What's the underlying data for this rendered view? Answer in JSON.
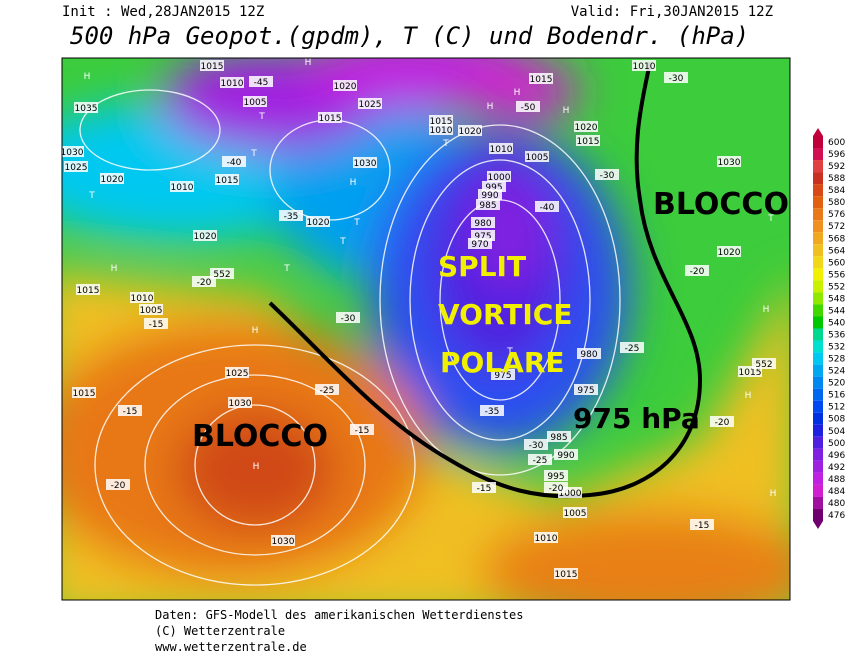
{
  "header": {
    "init": "Init : Wed,28JAN2015 12Z",
    "valid": "Valid: Fri,30JAN2015 12Z",
    "title": "500 hPa Geopot.(gpdm), T (C) und Bodendr. (hPa)"
  },
  "map": {
    "annotations": [
      "BLOCCO",
      "BLOCCO",
      "SPLIT",
      "VORTICE",
      "POLARE",
      "975 hPa"
    ],
    "labels": [
      "1015",
      "1010",
      "1005",
      "1035",
      "1030",
      "1025",
      "1020",
      "1010",
      "1015",
      "1020",
      "1020",
      "1015",
      "1010",
      "1005",
      "1025",
      "1030",
      "1015",
      "1030",
      "1020",
      "1025",
      "1015",
      "1030",
      "1015",
      "1010",
      "1020",
      "1010",
      "1005",
      "1000",
      "995",
      "990",
      "985",
      "980",
      "975",
      "970",
      "985",
      "990",
      "995",
      "1000",
      "1005",
      "1010",
      "1015",
      "1015",
      "1020",
      "1015",
      "1010",
      "1030",
      "1020",
      "1015",
      "980",
      "975",
      "975",
      "H",
      "H",
      "H",
      "H",
      "H",
      "H",
      "H",
      "H",
      "H",
      "H",
      "H",
      "H",
      "T",
      "T",
      "T",
      "T",
      "T",
      "T",
      "T",
      "T",
      "T",
      "-45",
      "-40",
      "-35",
      "-30",
      "-25",
      "-20",
      "-15",
      "-15",
      "-20",
      "-15",
      "-15",
      "-15",
      "-20",
      "-30",
      "-40",
      "-50",
      "-35",
      "-30",
      "-25",
      "-20",
      "-25",
      "-20",
      "-30",
      "552",
      "552"
    ]
  },
  "colorbar": {
    "ticks": [
      600,
      596,
      592,
      588,
      584,
      580,
      576,
      572,
      568,
      564,
      560,
      556,
      552,
      548,
      544,
      540,
      536,
      532,
      528,
      524,
      520,
      516,
      512,
      508,
      504,
      500,
      496,
      492,
      488,
      484,
      480,
      476
    ],
    "colors": [
      "#c0003a",
      "#d01050",
      "#e04040",
      "#c83020",
      "#d84818",
      "#e06010",
      "#e87818",
      "#f09020",
      "#f0a820",
      "#f0c020",
      "#f0d818",
      "#f0f000",
      "#c8f000",
      "#90e800",
      "#40d800",
      "#00c800",
      "#00d890",
      "#00e0d0",
      "#00c8f0",
      "#00a8f0",
      "#0088f0",
      "#0068f0",
      "#0048f0",
      "#0030e0",
      "#2020e0",
      "#5020e0",
      "#8020e0",
      "#a020e0",
      "#c020e0",
      "#d020d0",
      "#a010a0",
      "#700070"
    ]
  },
  "footer": [
    "Daten: GFS-Modell des amerikanischen Wetterdienstes",
    "(C) Wetterzentrale",
    "www.wetterzentrale.de"
  ]
}
